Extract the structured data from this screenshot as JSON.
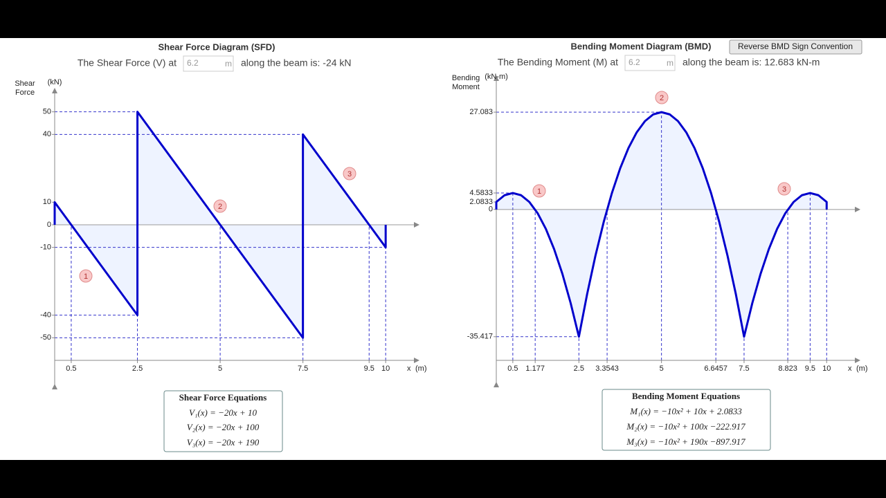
{
  "chart_data": [
    {
      "type": "line",
      "y_label": [
        "Shear",
        "Force"
      ],
      "y_unit": "(kN)",
      "x_label": "x",
      "x_unit": "(m)",
      "x": [
        0,
        0,
        2.5,
        2.5,
        7.5,
        7.5,
        10,
        10
      ],
      "series": [
        {
          "color": "#0000cc",
          "fill": "#eef3ff",
          "values": [
            0,
            10,
            -40,
            50,
            -50,
            40,
            -10,
            0
          ]
        }
      ],
      "xlim": [
        0,
        11
      ],
      "ylim": [
        -60,
        60
      ],
      "xticks": [
        0.5,
        2.5,
        5,
        7.5,
        9.5,
        10
      ],
      "yticks": [
        50,
        40,
        10,
        0,
        -10,
        -40,
        -50
      ],
      "markers": [
        "1",
        "2",
        "3"
      ]
    },
    {
      "type": "line",
      "y_label": [
        "Bending",
        "Moment"
      ],
      "y_unit": "(kN-m)",
      "x_label": "x",
      "x_unit": "(m)",
      "x": [
        0,
        0,
        0.25,
        0.5,
        0.75,
        1,
        1.25,
        1.5,
        1.75,
        2,
        2.25,
        2.5,
        2.75,
        3,
        3.25,
        3.5,
        3.75,
        4,
        4.25,
        4.5,
        4.75,
        5,
        5.25,
        5.5,
        5.75,
        6,
        6.25,
        6.5,
        6.75,
        7,
        7.25,
        7.5,
        7.75,
        8,
        8.25,
        8.5,
        8.75,
        9,
        9.25,
        9.5,
        9.75,
        10,
        10
      ],
      "series": [
        {
          "color": "#0000cc",
          "fill": "#eef3ff",
          "values": [
            0,
            2.083,
            3.958,
            4.583,
            3.958,
            2.083,
            -1.042,
            -5.417,
            -11.042,
            -17.917,
            -26.042,
            -35.417,
            -23.542,
            -12.917,
            -3.542,
            4.583,
            11.458,
            17.083,
            21.458,
            24.583,
            26.458,
            27.083,
            26.458,
            24.583,
            21.458,
            17.083,
            11.458,
            4.583,
            -3.542,
            -12.917,
            -23.542,
            -35.417,
            -26.042,
            -17.917,
            -11.042,
            -5.417,
            -1.042,
            2.083,
            3.958,
            4.583,
            3.958,
            2.083,
            0
          ]
        }
      ],
      "xlim": [
        0,
        11
      ],
      "ylim": [
        -42,
        35
      ],
      "xticks": [
        0.5,
        1.177,
        2.5,
        3.3543,
        5,
        6.6457,
        7.5,
        8.823,
        9.5,
        10
      ],
      "yticks": [
        27.083,
        4.5833,
        2.0833,
        0,
        -35.417
      ],
      "markers": [
        "1",
        "2",
        "3"
      ]
    }
  ],
  "sfd_panel": {
    "title": "Shear Force Diagram (SFD)",
    "prefix": "The Shear Force (V) at",
    "input_value": "6.2",
    "input_unit": "m",
    "result": "along the beam is: -24 kN",
    "equations_title": "Shear Force Equations",
    "equations": [
      "V₁(x) = −20x + 10",
      "V₂(x) = −20x + 100",
      "V₃(x) = −20x + 190"
    ]
  },
  "bmd_panel": {
    "title": "Bending Moment Diagram (BMD)",
    "button": "Reverse BMD Sign Convention",
    "prefix": "The Bending Moment (M) at",
    "input_value": "6.2",
    "input_unit": "m",
    "result": "along the beam is: 12.683 kN-m",
    "equations_title": "Bending Moment Equations",
    "equations": [
      "M₁(x) = −10x² + 10x + 2.0833",
      "M₂(x) = −10x² + 100x −222.917",
      "M₃(x) = −10x² + 190x −897.917"
    ]
  }
}
